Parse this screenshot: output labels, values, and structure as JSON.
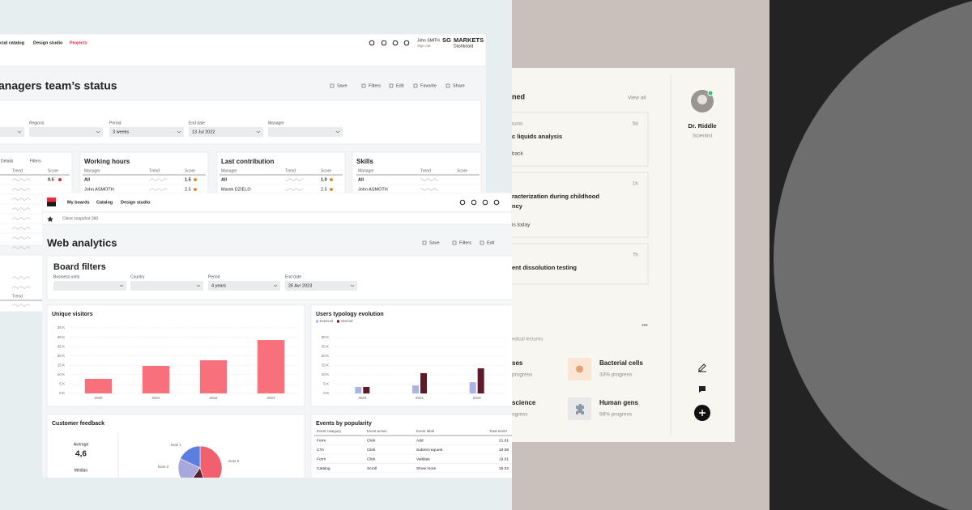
{
  "back_window": {
    "nav": [
      "cial catalog",
      "Design studio",
      "Projects"
    ],
    "user": {
      "name": "John SMITH",
      "action": "Sign out"
    },
    "brand": {
      "logo": "SG",
      "name": "MARKETS",
      "product": "Dashboard"
    },
    "title": "anagers team’s status",
    "toolbar": [
      "Save",
      "Filters",
      "Edit",
      "Favorite",
      "Share"
    ],
    "filters": {
      "labels": [
        "Regions",
        "Period",
        "End date",
        "Manager"
      ],
      "period": "3 weeks",
      "end_date": "13 Jul 2022"
    },
    "cards": [
      {
        "actions": [
          "Details",
          "Filters"
        ],
        "columns": [
          "Trend",
          "Score"
        ],
        "rows": [
          [
            "0.5"
          ]
        ]
      },
      {
        "title": "Working hours",
        "columns": [
          "Manager",
          "Trend",
          "Score"
        ],
        "rows": [
          [
            "All",
            "1.5"
          ],
          [
            "John ASMOTH",
            "2.5"
          ]
        ]
      },
      {
        "title": "Last contribution",
        "columns": [
          "Manager",
          "Trend",
          "Score"
        ],
        "rows": [
          [
            "All",
            "1.0"
          ],
          [
            "Marek DZIELO",
            "2.5"
          ]
        ]
      },
      {
        "title": "Skills",
        "columns": [
          "Manager",
          "Trend",
          "Score"
        ],
        "rows": [
          [
            "All"
          ],
          [
            "John ASMOTH"
          ]
        ]
      }
    ],
    "lower_card": {
      "columns": [
        "Trend"
      ]
    }
  },
  "front_window": {
    "nav": [
      "My boards",
      "Catalog",
      "Design studio"
    ],
    "breadcrumb": "Client snapshot 360",
    "title": "Web analytics",
    "toolbar": [
      "Save",
      "Filters",
      "Edit"
    ],
    "board_filters": {
      "title": "Board filters",
      "labels": [
        "Business units",
        "Country",
        "Period",
        "End date"
      ],
      "period": "4 years",
      "end_date": "26 Avr 2023"
    },
    "unique_visitors": {
      "type": "bar",
      "title": "Unique visitors",
      "categories": [
        "2020",
        "2021",
        "2022",
        "2023"
      ],
      "values": [
        7800,
        14700,
        17700,
        28500
      ],
      "color": "#f7707b",
      "ylim": [
        0,
        35000
      ],
      "yticks": [
        {
          "value": 0,
          "label": "0 K"
        },
        {
          "value": 5000,
          "label": "5 K"
        },
        {
          "value": 10000,
          "label": "10 K"
        },
        {
          "value": 15000,
          "label": "15 K"
        },
        {
          "value": 20000,
          "label": "20 K"
        },
        {
          "value": 25000,
          "label": "25 K"
        },
        {
          "value": 30000,
          "label": "30 K"
        },
        {
          "value": 35000,
          "label": "35 K"
        }
      ],
      "grid": true
    },
    "users_typology": {
      "type": "bar",
      "title": "Users typology evolution",
      "categories": [
        "2020",
        "2021",
        "2022"
      ],
      "series": [
        {
          "name": "External",
          "color": "#a9b4e4",
          "values": [
            3500,
            4300,
            6000
          ]
        },
        {
          "name": "Internal",
          "color": "#5c1a2a",
          "values": [
            3500,
            10900,
            13500
          ]
        }
      ],
      "ylim": [
        0,
        30000
      ],
      "yticks": [
        {
          "value": 0,
          "label": "0 K"
        },
        {
          "value": 5000,
          "label": "5 K"
        },
        {
          "value": 10000,
          "label": "10 K"
        },
        {
          "value": 15000,
          "label": "15 K"
        },
        {
          "value": 20000,
          "label": "20 K"
        },
        {
          "value": 25000,
          "label": "25 K"
        },
        {
          "value": 30000,
          "label": "30 K"
        }
      ],
      "grid": true
    },
    "customer_feedback": {
      "title": "Customer feedback",
      "average_label": "Average",
      "average": "4,6",
      "median_label": "Median",
      "pie": {
        "type": "pie",
        "categories": [
          "Note 5",
          null,
          "Note 3",
          "Note 1"
        ],
        "values": [
          45,
          15,
          22,
          18
        ],
        "colors": [
          "#f0606d",
          "#5a2030",
          "#a9a8dc",
          "#5b7fe0"
        ]
      }
    },
    "events": {
      "title": "Events by popularity",
      "columns": [
        "Event category",
        "Event action",
        "Event label",
        "Total event"
      ],
      "rows": [
        [
          "Form",
          "Click",
          "Add",
          "21.01"
        ],
        [
          "CTA",
          "Click",
          "Submit request",
          "19.08"
        ],
        [
          "Form",
          "Click",
          "Validate",
          "19.01"
        ],
        [
          "Catalog",
          "Scroll",
          "Show more",
          "15.22"
        ]
      ]
    }
  },
  "side_panel": {
    "heading": "ned",
    "view_all": "View all",
    "items": [
      {
        "meta": "uuno",
        "time": "5d",
        "title": [
          "c liquids analysis"
        ],
        "footer": "back"
      },
      {
        "time": "1h",
        "title": [
          "racterization during childhood",
          "ncy"
        ],
        "footer": "is today"
      },
      {
        "time": "7h",
        "title": [
          "ent dissolution testing"
        ]
      }
    ],
    "more": "•••",
    "section": "edical lectures",
    "courses": [
      {
        "name": "ses",
        "progress": "progress"
      },
      {
        "name": "Bacterial cells",
        "progress": "33% progress"
      },
      {
        "name": " science",
        "progress": "ogress"
      },
      {
        "name": "Human gens",
        "progress": "58% progress"
      }
    ],
    "profile": {
      "name": "Dr. Riddle",
      "role": "Scientist"
    }
  }
}
